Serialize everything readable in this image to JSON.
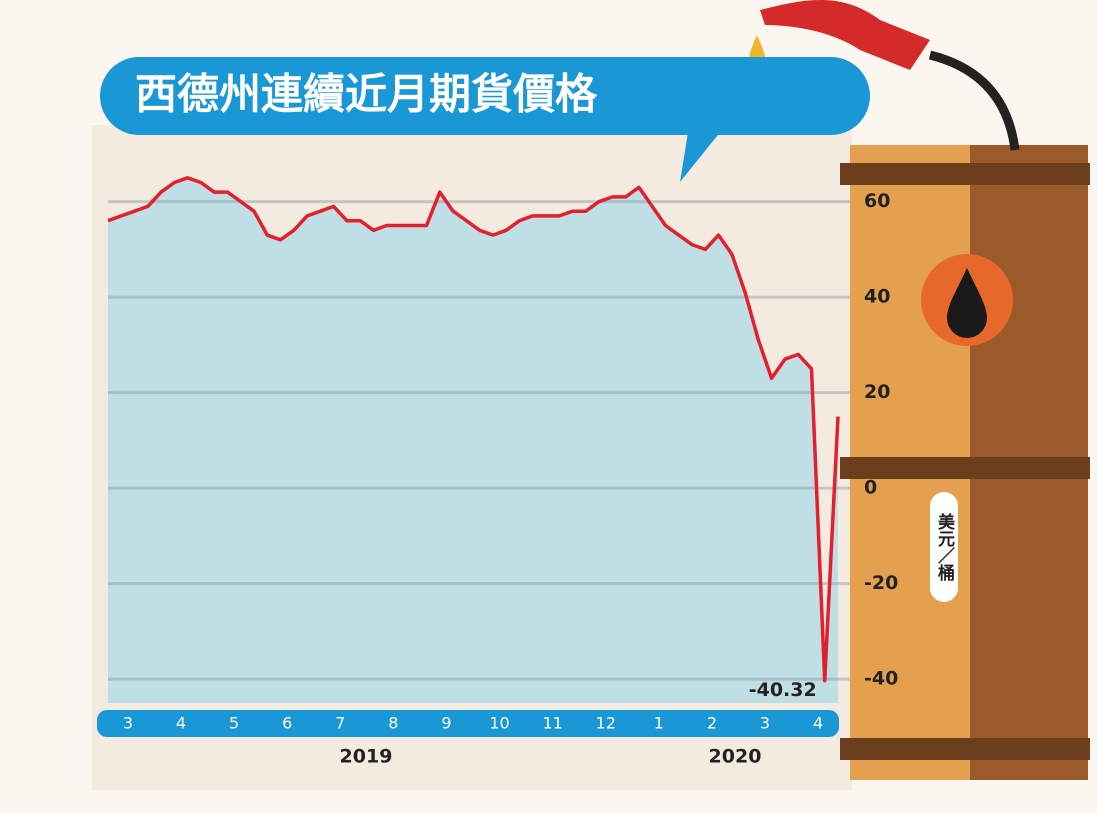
{
  "chart_data": {
    "type": "line",
    "title": "西德州連續近月期貨價格",
    "unit_label": "美元／桶",
    "categories": [
      null,
      "3",
      null,
      null,
      null,
      "4",
      null,
      null,
      null,
      "5",
      null,
      null,
      null,
      "6",
      null,
      null,
      null,
      "7",
      null,
      null,
      null,
      "8",
      null,
      null,
      null,
      "9",
      null,
      null,
      null,
      "10",
      null,
      null,
      null,
      "11",
      null,
      null,
      null,
      "12",
      null,
      null,
      null,
      "1",
      null,
      null,
      null,
      "2",
      null,
      null,
      null,
      "3",
      null,
      null,
      null,
      "4",
      null,
      null
    ],
    "year_labels": [
      "2019",
      "2020"
    ],
    "values": [
      56,
      57,
      58,
      59,
      62,
      64,
      65,
      64,
      62,
      62,
      60,
      58,
      53,
      52,
      54,
      57,
      58,
      59,
      56,
      56,
      54,
      55,
      55,
      55,
      55,
      62,
      58,
      56,
      54,
      53,
      54,
      56,
      57,
      57,
      57,
      58,
      58,
      60,
      61,
      61,
      63,
      59,
      55,
      53,
      51,
      50,
      53,
      49,
      41,
      31,
      23,
      27,
      28,
      25,
      -40.32,
      15
    ],
    "color": "#e3202c",
    "label_min": true,
    "ylim": [
      -45,
      75
    ],
    "yticks": [
      -40,
      -20,
      0,
      20,
      40,
      60
    ],
    "grid": true
  }
}
